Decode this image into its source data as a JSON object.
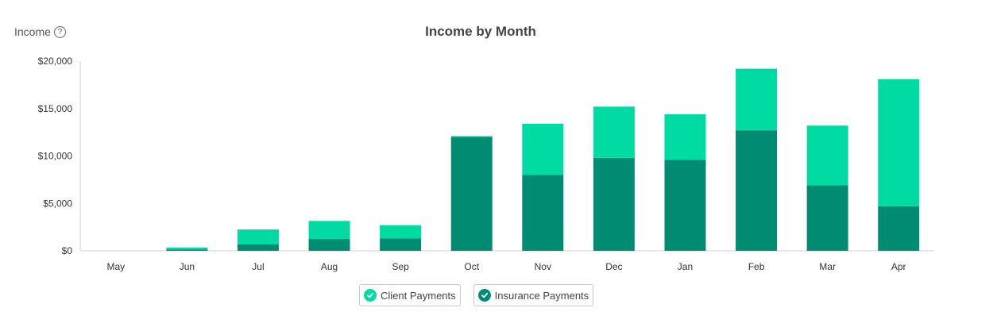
{
  "header": {
    "page_label": "Income",
    "help_glyph": "?"
  },
  "chart_data": {
    "type": "bar",
    "stacked": true,
    "title": "Income by Month",
    "xlabel": "",
    "ylabel": "",
    "categories": [
      "May",
      "Jun",
      "Jul",
      "Aug",
      "Sep",
      "Oct",
      "Nov",
      "Dec",
      "Jan",
      "Feb",
      "Mar",
      "Apr"
    ],
    "series": [
      {
        "name": "Insurance Payments",
        "color": "#008c72",
        "values": [
          0,
          150,
          700,
          1250,
          1300,
          12000,
          8000,
          9800,
          9600,
          12700,
          6900,
          4700
        ]
      },
      {
        "name": "Client Payments",
        "color": "#00dba3",
        "values": [
          0,
          200,
          1550,
          1900,
          1400,
          100,
          5400,
          5400,
          4800,
          6500,
          6300,
          13400
        ]
      }
    ],
    "ylim": [
      0,
      20000
    ],
    "yticks": [
      0,
      5000,
      10000,
      15000,
      20000
    ],
    "ytick_labels": [
      "$0",
      "$5,000",
      "$10,000",
      "$15,000",
      "$20,000"
    ],
    "grid": false,
    "legend_position": "bottom-center"
  },
  "legend": [
    {
      "label": "Client Payments",
      "color": "#00dba3",
      "icon": "check-circle-icon"
    },
    {
      "label": "Insurance Payments",
      "color": "#008c72",
      "icon": "check-circle-icon"
    }
  ]
}
